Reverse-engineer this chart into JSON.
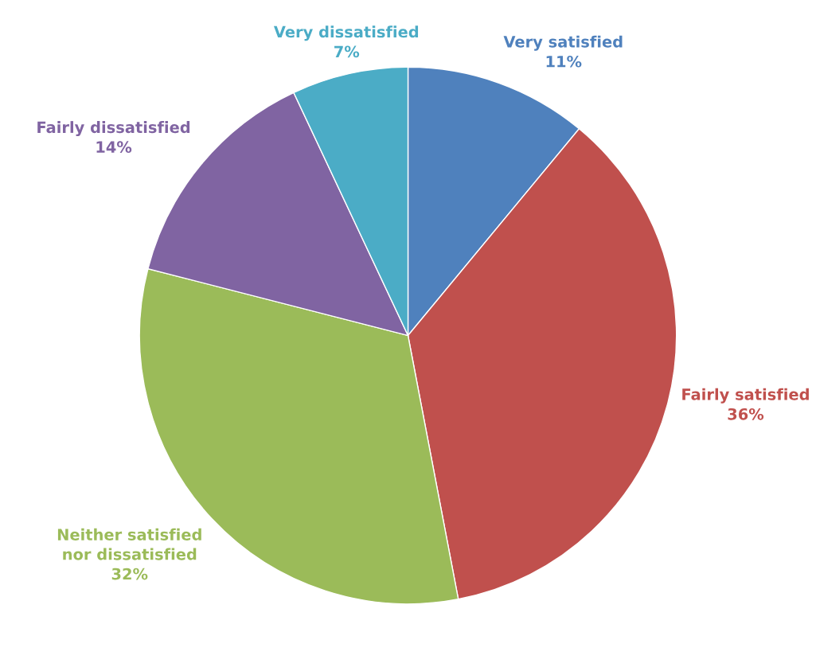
{
  "chart_data": {
    "type": "pie",
    "categories": [
      "Very satisfied",
      "Fairly satisfied",
      "Neither satisfied\nnor dissatisfied",
      "Fairly dissatisfied",
      "Very dissatisfied"
    ],
    "values": [
      11,
      36,
      32,
      14,
      7
    ],
    "value_labels": [
      "11%",
      "36%",
      "32%",
      "14%",
      "7%"
    ],
    "colors": [
      "#4f81bd",
      "#c0504d",
      "#9bbb59",
      "#8064a2",
      "#4bacc6"
    ],
    "legend": false
  }
}
